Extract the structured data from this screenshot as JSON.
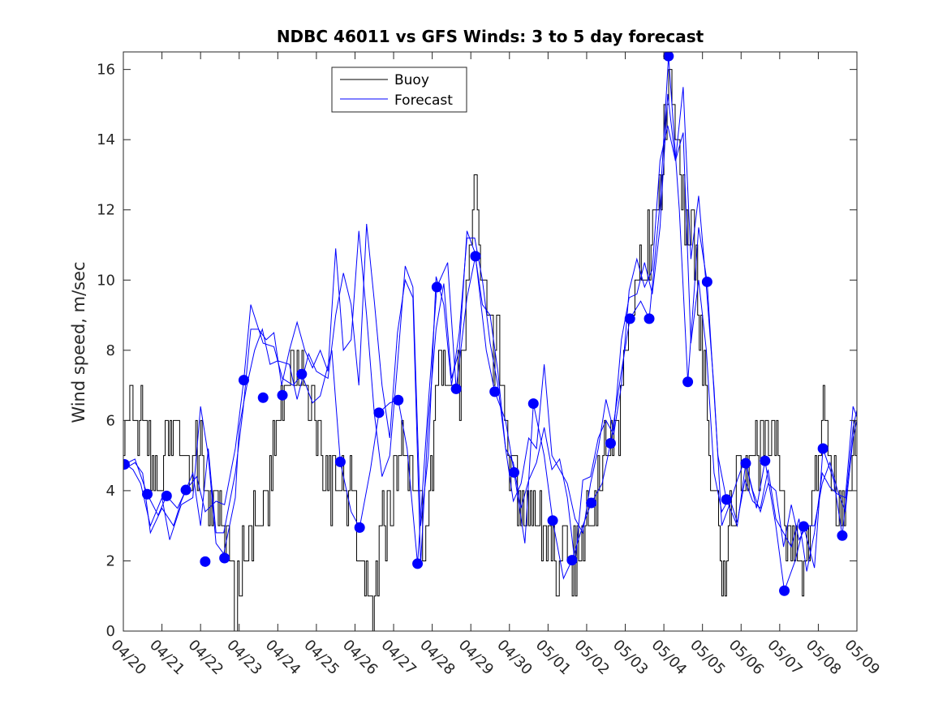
{
  "chart_data": {
    "type": "line",
    "title": "NDBC 46011 vs GFS Winds: 3 to 5 day forecast",
    "xlabel": "",
    "ylabel": "Wind speed, m/sec",
    "ylim": [
      0,
      16.5
    ],
    "xlim_days": [
      0,
      19
    ],
    "x_tick_labels": [
      "04/20",
      "04/21",
      "04/22",
      "04/23",
      "04/24",
      "04/25",
      "04/26",
      "04/27",
      "04/28",
      "04/29",
      "04/30",
      "05/01",
      "05/02",
      "05/03",
      "05/04",
      "05/05",
      "05/06",
      "05/07",
      "05/08",
      "05/09"
    ],
    "y_ticks": [
      0,
      2,
      4,
      6,
      8,
      10,
      12,
      14,
      16
    ],
    "legend": {
      "placement": "top-center",
      "entries": [
        "Buoy",
        "Forecast"
      ]
    },
    "colors": {
      "buoy": "#000000",
      "forecast": "#0000ff"
    },
    "buoy_anchor_values": [
      [
        0.0,
        5.5
      ],
      [
        0.2,
        6.5
      ],
      [
        0.5,
        5.5
      ],
      [
        0.8,
        4.5
      ],
      [
        1.0,
        5.0
      ],
      [
        1.3,
        5.5
      ],
      [
        1.6,
        5.0
      ],
      [
        1.8,
        4.5
      ],
      [
        2.0,
        5.0
      ],
      [
        2.2,
        4.0
      ],
      [
        2.5,
        3.0
      ],
      [
        2.7,
        2.0
      ],
      [
        2.9,
        1.0
      ],
      [
        3.1,
        2.0
      ],
      [
        3.3,
        3.0
      ],
      [
        3.6,
        3.0
      ],
      [
        3.8,
        4.5
      ],
      [
        4.0,
        6.0
      ],
      [
        4.2,
        7.0
      ],
      [
        4.4,
        7.5
      ],
      [
        4.7,
        7.0
      ],
      [
        5.0,
        6.0
      ],
      [
        5.3,
        4.0
      ],
      [
        5.6,
        4.5
      ],
      [
        5.8,
        4.0
      ],
      [
        6.0,
        3.0
      ],
      [
        6.2,
        1.5
      ],
      [
        6.4,
        0.5
      ],
      [
        6.6,
        2.0
      ],
      [
        6.9,
        4.0
      ],
      [
        7.2,
        5.0
      ],
      [
        7.5,
        4.5
      ],
      [
        7.7,
        3.5
      ],
      [
        7.8,
        2.0
      ],
      [
        8.0,
        5.0
      ],
      [
        8.2,
        7.5
      ],
      [
        8.4,
        7.5
      ],
      [
        8.6,
        6.0
      ],
      [
        8.8,
        8.0
      ],
      [
        9.0,
        11.0
      ],
      [
        9.1,
        12.0
      ],
      [
        9.3,
        10.0
      ],
      [
        9.5,
        8.5
      ],
      [
        9.7,
        8.0
      ],
      [
        10.0,
        5.0
      ],
      [
        10.3,
        3.5
      ],
      [
        10.6,
        4.0
      ],
      [
        10.8,
        3.0
      ],
      [
        11.0,
        2.5
      ],
      [
        11.3,
        2.0
      ],
      [
        11.6,
        1.5
      ],
      [
        11.9,
        2.5
      ],
      [
        12.2,
        4.0
      ],
      [
        12.5,
        5.0
      ],
      [
        12.8,
        6.0
      ],
      [
        13.0,
        7.5
      ],
      [
        13.3,
        10.0
      ],
      [
        13.6,
        11.0
      ],
      [
        13.8,
        12.5
      ],
      [
        14.0,
        14.0
      ],
      [
        14.15,
        15.5
      ],
      [
        14.3,
        14.0
      ],
      [
        14.5,
        12.0
      ],
      [
        14.8,
        11.0
      ],
      [
        15.0,
        8.0
      ],
      [
        15.2,
        5.0
      ],
      [
        15.4,
        3.0
      ],
      [
        15.5,
        0.5
      ],
      [
        15.7,
        3.0
      ],
      [
        16.0,
        4.5
      ],
      [
        16.4,
        5.0
      ],
      [
        16.8,
        6.0
      ],
      [
        17.0,
        4.0
      ],
      [
        17.3,
        2.5
      ],
      [
        17.6,
        2.0
      ],
      [
        17.9,
        4.0
      ],
      [
        18.1,
        6.5
      ],
      [
        18.3,
        5.0
      ],
      [
        18.6,
        3.5
      ],
      [
        19.0,
        5.5
      ]
    ],
    "forecast_markers": [
      {
        "x": 0.03,
        "y": 4.75
      },
      {
        "x": 0.62,
        "y": 3.9
      },
      {
        "x": 1.12,
        "y": 3.85
      },
      {
        "x": 1.62,
        "y": 4.02
      },
      {
        "x": 2.12,
        "y": 1.98
      },
      {
        "x": 2.62,
        "y": 2.08
      },
      {
        "x": 3.12,
        "y": 7.15
      },
      {
        "x": 3.62,
        "y": 6.65
      },
      {
        "x": 4.12,
        "y": 6.72
      },
      {
        "x": 4.62,
        "y": 7.32
      },
      {
        "x": 5.62,
        "y": 4.82
      },
      {
        "x": 6.12,
        "y": 2.95
      },
      {
        "x": 6.62,
        "y": 6.22
      },
      {
        "x": 7.12,
        "y": 6.58
      },
      {
        "x": 7.62,
        "y": 1.92
      },
      {
        "x": 8.12,
        "y": 9.8
      },
      {
        "x": 8.62,
        "y": 6.9
      },
      {
        "x": 9.12,
        "y": 10.68
      },
      {
        "x": 9.62,
        "y": 6.82
      },
      {
        "x": 10.12,
        "y": 4.52
      },
      {
        "x": 10.62,
        "y": 6.48
      },
      {
        "x": 11.12,
        "y": 3.15
      },
      {
        "x": 11.62,
        "y": 2.02
      },
      {
        "x": 12.12,
        "y": 3.65
      },
      {
        "x": 12.62,
        "y": 5.35
      },
      {
        "x": 13.12,
        "y": 8.9
      },
      {
        "x": 13.62,
        "y": 8.9
      },
      {
        "x": 14.12,
        "y": 16.38
      },
      {
        "x": 14.62,
        "y": 7.1
      },
      {
        "x": 15.12,
        "y": 9.95
      },
      {
        "x": 15.62,
        "y": 3.75
      },
      {
        "x": 16.12,
        "y": 4.78
      },
      {
        "x": 16.62,
        "y": 4.85
      },
      {
        "x": 17.12,
        "y": 1.15
      },
      {
        "x": 17.62,
        "y": 2.98
      },
      {
        "x": 18.12,
        "y": 5.2
      },
      {
        "x": 18.62,
        "y": 2.72
      }
    ],
    "forecast_segments": [
      [
        [
          0.03,
          4.75
        ],
        [
          0.3,
          4.9
        ],
        [
          0.62,
          3.9
        ],
        [
          0.9,
          3.3
        ],
        [
          1.12,
          3.85
        ],
        [
          1.4,
          3.5
        ],
        [
          1.62,
          4.02
        ],
        [
          1.9,
          4.4
        ],
        [
          2.12,
          3.4
        ],
        [
          2.4,
          3.7
        ],
        [
          2.62,
          3.6
        ],
        [
          2.9,
          5.2
        ],
        [
          3.12,
          7.15
        ],
        [
          3.3,
          9.3
        ],
        [
          3.62,
          8.2
        ],
        [
          3.9,
          8.1
        ],
        [
          4.12,
          7.2
        ],
        [
          4.4,
          7.0
        ],
        [
          4.62,
          7.32
        ],
        [
          4.9,
          6.5
        ],
        [
          5.1,
          6.7
        ],
        [
          5.4,
          8.0
        ],
        [
          5.62,
          4.82
        ],
        [
          5.9,
          3.4
        ],
        [
          6.12,
          2.95
        ],
        [
          6.4,
          4.6
        ],
        [
          6.62,
          6.22
        ],
        [
          6.9,
          6.5
        ],
        [
          7.12,
          6.58
        ],
        [
          7.35,
          5.2
        ],
        [
          7.62,
          1.92
        ],
        [
          7.9,
          6.5
        ],
        [
          8.12,
          9.8
        ],
        [
          8.4,
          10.5
        ],
        [
          8.62,
          6.9
        ],
        [
          8.9,
          9.5
        ],
        [
          9.12,
          10.68
        ],
        [
          9.4,
          8.0
        ],
        [
          9.62,
          6.82
        ],
        [
          9.9,
          6.0
        ],
        [
          10.12,
          4.52
        ],
        [
          10.4,
          2.5
        ],
        [
          10.62,
          6.48
        ],
        [
          10.9,
          5.0
        ],
        [
          11.12,
          3.15
        ],
        [
          11.4,
          1.5
        ],
        [
          11.62,
          2.02
        ],
        [
          11.9,
          3.0
        ],
        [
          12.12,
          3.65
        ],
        [
          12.4,
          4.2
        ],
        [
          12.62,
          5.35
        ],
        [
          12.9,
          7.4
        ],
        [
          13.12,
          8.9
        ],
        [
          13.4,
          9.4
        ],
        [
          13.62,
          8.9
        ],
        [
          13.9,
          12.2
        ],
        [
          14.12,
          16.38
        ],
        [
          14.4,
          12.0
        ],
        [
          14.62,
          7.1
        ],
        [
          14.9,
          11.5
        ],
        [
          15.12,
          9.95
        ],
        [
          15.4,
          5.0
        ],
        [
          15.62,
          3.75
        ],
        [
          15.9,
          3.0
        ],
        [
          16.12,
          4.78
        ],
        [
          16.4,
          3.5
        ],
        [
          16.62,
          4.85
        ],
        [
          16.9,
          3.0
        ],
        [
          17.12,
          1.15
        ],
        [
          17.4,
          2.0
        ],
        [
          17.62,
          2.98
        ],
        [
          17.9,
          1.8
        ],
        [
          18.12,
          5.2
        ],
        [
          18.4,
          4.3
        ],
        [
          18.62,
          2.72
        ],
        [
          18.9,
          5.8
        ],
        [
          19.0,
          6.3
        ]
      ],
      [
        [
          0.0,
          4.8
        ],
        [
          0.25,
          4.6
        ],
        [
          0.45,
          4.2
        ],
        [
          0.7,
          3.0
        ],
        [
          1.0,
          3.8
        ],
        [
          1.2,
          2.6
        ],
        [
          1.5,
          3.6
        ],
        [
          1.8,
          3.8
        ],
        [
          2.0,
          6.4
        ],
        [
          2.2,
          5.0
        ],
        [
          2.4,
          2.5
        ],
        [
          2.6,
          2.2
        ],
        [
          2.9,
          3.8
        ],
        [
          3.0,
          5.8
        ],
        [
          3.2,
          7.0
        ],
        [
          3.4,
          8.0
        ],
        [
          3.6,
          8.6
        ],
        [
          3.8,
          7.6
        ],
        [
          4.0,
          7.7
        ],
        [
          4.3,
          7.6
        ],
        [
          4.5,
          6.6
        ],
        [
          4.8,
          7.9
        ],
        [
          5.0,
          7.4
        ],
        [
          5.3,
          7.2
        ],
        [
          5.5,
          9.0
        ],
        [
          5.7,
          10.2
        ],
        [
          5.9,
          9.3
        ],
        [
          6.1,
          7.0
        ],
        [
          6.3,
          11.6
        ],
        [
          6.5,
          9.4
        ],
        [
          6.7,
          7.0
        ],
        [
          6.9,
          5.5
        ],
        [
          7.1,
          8.5
        ],
        [
          7.3,
          10.0
        ],
        [
          7.5,
          9.5
        ],
        [
          7.7,
          1.9
        ],
        [
          7.9,
          6.0
        ],
        [
          8.1,
          8.6
        ],
        [
          8.3,
          9.9
        ],
        [
          8.5,
          7.2
        ],
        [
          8.7,
          8.0
        ],
        [
          8.9,
          11.4
        ],
        [
          9.1,
          10.8
        ],
        [
          9.3,
          9.3
        ],
        [
          9.5,
          9.0
        ],
        [
          9.7,
          7.4
        ],
        [
          9.9,
          5.2
        ],
        [
          10.1,
          3.7
        ],
        [
          10.3,
          4.2
        ],
        [
          10.5,
          5.5
        ],
        [
          10.7,
          5.2
        ],
        [
          10.9,
          7.6
        ],
        [
          11.1,
          5.0
        ],
        [
          11.3,
          4.6
        ],
        [
          11.5,
          4.2
        ],
        [
          11.7,
          3.2
        ],
        [
          11.9,
          2.8
        ],
        [
          12.1,
          4.2
        ],
        [
          12.3,
          5.2
        ],
        [
          12.5,
          6.6
        ],
        [
          12.7,
          5.7
        ],
        [
          12.9,
          8.3
        ],
        [
          13.1,
          9.5
        ],
        [
          13.3,
          9.6
        ],
        [
          13.5,
          10.5
        ],
        [
          13.7,
          9.6
        ],
        [
          13.9,
          11.5
        ],
        [
          14.1,
          15.3
        ],
        [
          14.3,
          13.4
        ],
        [
          14.5,
          15.5
        ],
        [
          14.7,
          10.6
        ],
        [
          14.9,
          12.4
        ],
        [
          15.1,
          9.8
        ],
        [
          15.3,
          6.9
        ],
        [
          15.5,
          3.0
        ],
        [
          15.7,
          3.6
        ],
        [
          15.9,
          4.3
        ],
        [
          16.1,
          4.9
        ],
        [
          16.3,
          4.0
        ],
        [
          16.5,
          3.4
        ],
        [
          16.7,
          4.2
        ],
        [
          16.9,
          4.0
        ],
        [
          17.1,
          2.4
        ],
        [
          17.3,
          3.6
        ],
        [
          17.5,
          2.6
        ],
        [
          17.7,
          3.0
        ],
        [
          17.9,
          3.0
        ],
        [
          18.1,
          4.2
        ],
        [
          18.3,
          4.8
        ],
        [
          18.5,
          4.0
        ],
        [
          18.7,
          3.4
        ],
        [
          18.9,
          5.5
        ],
        [
          19.0,
          6.0
        ]
      ],
      [
        [
          0.0,
          4.6
        ],
        [
          0.3,
          4.8
        ],
        [
          0.5,
          4.5
        ],
        [
          0.7,
          2.8
        ],
        [
          1.0,
          3.5
        ],
        [
          1.3,
          3.0
        ],
        [
          1.5,
          3.7
        ],
        [
          1.8,
          4.5
        ],
        [
          2.0,
          3.0
        ],
        [
          2.2,
          5.2
        ],
        [
          2.4,
          2.8
        ],
        [
          2.6,
          2.8
        ],
        [
          2.9,
          4.5
        ],
        [
          3.1,
          6.3
        ],
        [
          3.3,
          8.6
        ],
        [
          3.5,
          8.6
        ],
        [
          3.7,
          8.3
        ],
        [
          3.9,
          8.5
        ],
        [
          4.1,
          7.0
        ],
        [
          4.3,
          8.0
        ],
        [
          4.5,
          8.8
        ],
        [
          4.7,
          8.0
        ],
        [
          4.9,
          7.5
        ],
        [
          5.1,
          8.0
        ],
        [
          5.3,
          7.4
        ],
        [
          5.5,
          10.9
        ],
        [
          5.7,
          8.0
        ],
        [
          5.9,
          8.3
        ],
        [
          6.1,
          11.4
        ],
        [
          6.3,
          9.0
        ],
        [
          6.5,
          6.2
        ],
        [
          6.7,
          4.4
        ],
        [
          6.9,
          5.0
        ],
        [
          7.1,
          7.6
        ],
        [
          7.3,
          10.4
        ],
        [
          7.5,
          9.8
        ],
        [
          7.7,
          3.0
        ],
        [
          7.9,
          5.0
        ],
        [
          8.1,
          10.1
        ],
        [
          8.3,
          9.3
        ],
        [
          8.5,
          7.0
        ],
        [
          8.7,
          8.5
        ],
        [
          8.9,
          11.2
        ],
        [
          9.1,
          11.2
        ],
        [
          9.3,
          10.0
        ],
        [
          9.5,
          8.2
        ],
        [
          9.7,
          7.0
        ],
        [
          9.9,
          5.2
        ],
        [
          10.1,
          4.8
        ],
        [
          10.3,
          3.5
        ],
        [
          10.5,
          4.3
        ],
        [
          10.7,
          4.8
        ],
        [
          10.9,
          5.8
        ],
        [
          11.1,
          4.6
        ],
        [
          11.3,
          4.9
        ],
        [
          11.5,
          3.8
        ],
        [
          11.7,
          1.9
        ],
        [
          11.9,
          4.3
        ],
        [
          12.1,
          4.4
        ],
        [
          12.3,
          5.5
        ],
        [
          12.5,
          6.0
        ],
        [
          12.7,
          5.6
        ],
        [
          12.9,
          7.0
        ],
        [
          13.1,
          9.7
        ],
        [
          13.3,
          10.6
        ],
        [
          13.5,
          9.8
        ],
        [
          13.7,
          10.3
        ],
        [
          13.9,
          13.4
        ],
        [
          14.1,
          14.4
        ],
        [
          14.3,
          13.4
        ],
        [
          14.5,
          14.2
        ],
        [
          14.7,
          8.2
        ],
        [
          14.9,
          10.0
        ],
        [
          15.1,
          8.0
        ],
        [
          15.3,
          4.5
        ],
        [
          15.5,
          3.4
        ],
        [
          15.7,
          3.8
        ],
        [
          15.9,
          3.1
        ],
        [
          16.1,
          4.3
        ],
        [
          16.3,
          3.7
        ],
        [
          16.5,
          3.5
        ],
        [
          16.7,
          4.6
        ],
        [
          16.9,
          3.2
        ],
        [
          17.1,
          2.8
        ],
        [
          17.3,
          2.4
        ],
        [
          17.5,
          3.2
        ],
        [
          17.7,
          1.7
        ],
        [
          17.9,
          2.8
        ],
        [
          18.1,
          4.5
        ],
        [
          18.3,
          4.1
        ],
        [
          18.5,
          3.9
        ],
        [
          18.7,
          3.8
        ],
        [
          18.9,
          6.4
        ],
        [
          19.0,
          6.1
        ]
      ]
    ]
  }
}
